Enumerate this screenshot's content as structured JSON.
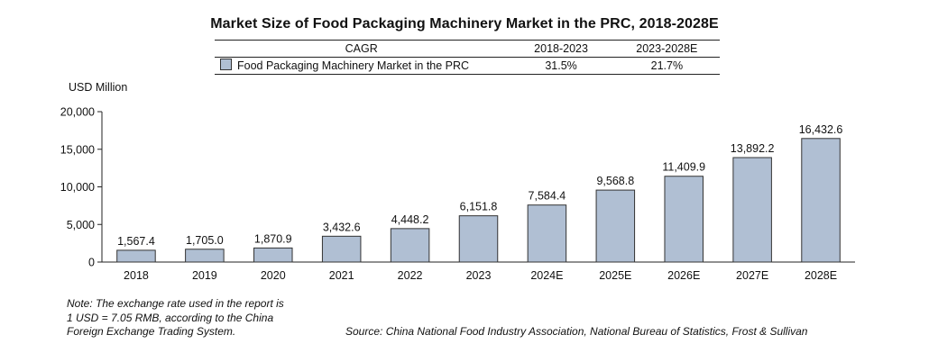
{
  "chart_data": {
    "type": "bar",
    "title": "Market Size of Food Packaging Machinery Market in the PRC, 2018-2028E",
    "ylabel": "USD Million",
    "xlabel": "",
    "ylim": [
      0,
      20000
    ],
    "yticks": [
      0,
      5000,
      10000,
      15000,
      20000
    ],
    "ytick_labels": [
      "0",
      "5,000",
      "10,000",
      "15,000",
      "20,000"
    ],
    "categories": [
      "2018",
      "2019",
      "2020",
      "2021",
      "2022",
      "2023",
      "2024E",
      "2025E",
      "2026E",
      "2027E",
      "2028E"
    ],
    "values": [
      1567.4,
      1705.0,
      1870.9,
      3432.6,
      4448.2,
      6151.8,
      7584.4,
      9568.8,
      11409.9,
      13892.2,
      16432.6
    ],
    "value_labels": [
      "1,567.4",
      "1,705.0",
      "1,870.9",
      "3,432.6",
      "4,448.2",
      "6,151.8",
      "7,584.4",
      "9,568.8",
      "11,409.9",
      "13,892.2",
      "16,432.6"
    ],
    "grid": false,
    "bar_color": "#b0bfd3",
    "bar_edge_color": "#333333"
  },
  "cagr_table": {
    "header": "CAGR",
    "period1": "2018-2023",
    "period2": "2023-2028E",
    "series_name": "Food Packaging Machinery Market in the PRC",
    "cagr1": "31.5%",
    "cagr2": "21.7%"
  },
  "note": "Note: The exchange rate used in the report is 1 USD = 7.05 RMB, according to the China Foreign Exchange Trading System.",
  "note_lines": [
    "Note: The exchange rate used in the report is",
    "1 USD = 7.05 RMB, according to the China",
    "Foreign Exchange Trading System."
  ],
  "source": "Source: China National Food Industry Association, National Bureau of Statistics, Frost & Sullivan"
}
